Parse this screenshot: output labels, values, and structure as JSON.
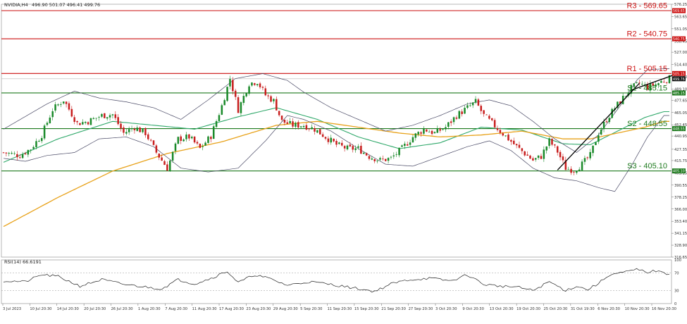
{
  "header": {
    "symbol": "NVIDIA,H4",
    "ohlc": "496.90 501.07 496.41 499.76"
  },
  "rsi_header": "RSI(14) 66.6191",
  "colors": {
    "bull": "#1a8a2a",
    "bear": "#c81e1e",
    "resistance": "#cc1111",
    "support": "#1e7a1e",
    "ma_fast": "#2fa86a",
    "ma_slow": "#e8a21a",
    "bollinger": "#4a4a66",
    "trend": "#000000",
    "rsi": "#222222"
  },
  "chart_data": {
    "type": "candlestick",
    "title": "NVIDIA,H4",
    "ylim": [
      316.65,
      576.25
    ],
    "y_ticks": [
      "576.25",
      "563.65",
      "551.05",
      "538.45",
      "527.00",
      "514.40",
      "501.80",
      "489.10",
      "477.65",
      "465.05",
      "452.45",
      "440.95",
      "427.35",
      "415.75",
      "403.15",
      "390.55",
      "378.25",
      "366.00",
      "353.40",
      "341.15",
      "328.90",
      "316.65"
    ],
    "x_ticks": [
      "3 Jul 2023",
      "10 Jul 20:30",
      "14 Jul 20:30",
      "20 Jul 20:30",
      "26 Jul 20:30",
      "1 Aug 20:30",
      "7 Aug 20:30",
      "11 Aug 20:30",
      "17 Aug 20:30",
      "23 Aug 20:30",
      "29 Aug 20:30",
      "5 Sep 20:30",
      "11 Sep 20:30",
      "15 Sep 20:30",
      "21 Sep 20:30",
      "27 Sep 20:30",
      "3 Oct 20:30",
      "9 Oct 20:30",
      "13 Oct 20:30",
      "19 Oct 20:30",
      "25 Oct 20:30",
      "31 Oct 19:30",
      "6 Nov 20:30",
      "10 Nov 20:30",
      "16 Nov 20:30"
    ],
    "levels": [
      {
        "name": "R3",
        "value": 569.65,
        "label": "R3 - 569.65",
        "tag": "569.65",
        "kind": "resistance"
      },
      {
        "name": "R2",
        "value": 540.75,
        "label": "R2 - 540.75",
        "tag": "540.75",
        "kind": "resistance"
      },
      {
        "name": "R1",
        "value": 505.15,
        "label": "R1 - 505.15",
        "tag": "505.15",
        "kind": "resistance"
      },
      {
        "name": "S1",
        "value": 485.15,
        "label": "S1 - 485.15",
        "tag": "485.15",
        "kind": "support"
      },
      {
        "name": "S2",
        "value": 448.55,
        "label": "S2 - 448.55",
        "tag": "448.55",
        "kind": "support"
      },
      {
        "name": "S3",
        "value": 405.1,
        "label": "S3 - 405.10",
        "tag": "405.10",
        "kind": "support"
      }
    ],
    "last_price_tag": "499.76",
    "close_anchors": [
      [
        0,
        424
      ],
      [
        6,
        421
      ],
      [
        10,
        428
      ],
      [
        14,
        442
      ],
      [
        18,
        468
      ],
      [
        22,
        478
      ],
      [
        27,
        454
      ],
      [
        31,
        456
      ],
      [
        36,
        462
      ],
      [
        40,
        463
      ],
      [
        44,
        444
      ],
      [
        48,
        450
      ],
      [
        52,
        444
      ],
      [
        56,
        424
      ],
      [
        60,
        408
      ],
      [
        64,
        438
      ],
      [
        68,
        440
      ],
      [
        72,
        428
      ],
      [
        76,
        441
      ],
      [
        80,
        472
      ],
      [
        83,
        500
      ],
      [
        86,
        468
      ],
      [
        90,
        495
      ],
      [
        93,
        497
      ],
      [
        96,
        483
      ],
      [
        99,
        477
      ],
      [
        102,
        456
      ],
      [
        106,
        452
      ],
      [
        110,
        452
      ],
      [
        114,
        448
      ],
      [
        118,
        440
      ],
      [
        122,
        432
      ],
      [
        126,
        428
      ],
      [
        130,
        428
      ],
      [
        134,
        420
      ],
      [
        138,
        416
      ],
      [
        142,
        418
      ],
      [
        146,
        428
      ],
      [
        150,
        440
      ],
      [
        154,
        448
      ],
      [
        158,
        444
      ],
      [
        162,
        450
      ],
      [
        166,
        462
      ],
      [
        170,
        470
      ],
      [
        173,
        476
      ],
      [
        176,
        462
      ],
      [
        179,
        454
      ],
      [
        182,
        446
      ],
      [
        185,
        438
      ],
      [
        188,
        430
      ],
      [
        191,
        423
      ],
      [
        194,
        416
      ],
      [
        197,
        420
      ],
      [
        200,
        436
      ],
      [
        203,
        425
      ],
      [
        206,
        408
      ],
      [
        209,
        406
      ],
      [
        212,
        412
      ],
      [
        215,
        421
      ],
      [
        218,
        444
      ],
      [
        221,
        458
      ],
      [
        224,
        470
      ],
      [
        227,
        480
      ],
      [
        230,
        490
      ],
      [
        233,
        495
      ],
      [
        236,
        491
      ],
      [
        239,
        494
      ],
      [
        242,
        498
      ],
      [
        244,
        500
      ]
    ],
    "series": [
      {
        "name": "MA fast",
        "values": [
          [
            0,
            414
          ],
          [
            20,
            438
          ],
          [
            40,
            456
          ],
          [
            55,
            452
          ],
          [
            70,
            448
          ],
          [
            85,
            460
          ],
          [
            100,
            470
          ],
          [
            115,
            458
          ],
          [
            130,
            440
          ],
          [
            145,
            428
          ],
          [
            160,
            434
          ],
          [
            175,
            450
          ],
          [
            190,
            447
          ],
          [
            205,
            433
          ],
          [
            215,
            432
          ],
          [
            225,
            446
          ],
          [
            235,
            460
          ],
          [
            242,
            466
          ]
        ]
      },
      {
        "name": "MA slow",
        "values": [
          [
            0,
            348
          ],
          [
            20,
            378
          ],
          [
            40,
            405
          ],
          [
            60,
            423
          ],
          [
            80,
            435
          ],
          [
            100,
            452
          ],
          [
            115,
            456
          ],
          [
            130,
            450
          ],
          [
            145,
            444
          ],
          [
            160,
            440
          ],
          [
            175,
            442
          ],
          [
            190,
            446
          ],
          [
            205,
            438
          ],
          [
            215,
            438
          ],
          [
            225,
            444
          ],
          [
            235,
            450
          ],
          [
            242,
            456
          ]
        ]
      },
      {
        "name": "Bollinger upper",
        "values": [
          [
            0,
            448
          ],
          [
            16,
            474
          ],
          [
            26,
            487
          ],
          [
            35,
            480
          ],
          [
            45,
            476
          ],
          [
            55,
            470
          ],
          [
            65,
            458
          ],
          [
            75,
            478
          ],
          [
            85,
            500
          ],
          [
            95,
            505
          ],
          [
            104,
            498
          ],
          [
            110,
            486
          ],
          [
            120,
            470
          ],
          [
            130,
            458
          ],
          [
            140,
            446
          ],
          [
            150,
            452
          ],
          [
            160,
            462
          ],
          [
            170,
            474
          ],
          [
            178,
            478
          ],
          [
            186,
            472
          ],
          [
            194,
            456
          ],
          [
            202,
            438
          ],
          [
            210,
            424
          ],
          [
            218,
            442
          ],
          [
            226,
            472
          ],
          [
            232,
            498
          ],
          [
            236,
            509
          ],
          [
            242,
            510
          ]
        ]
      },
      {
        "name": "Bollinger lower",
        "values": [
          [
            0,
            418
          ],
          [
            8,
            415
          ],
          [
            16,
            421
          ],
          [
            26,
            424
          ],
          [
            35,
            438
          ],
          [
            45,
            440
          ],
          [
            55,
            430
          ],
          [
            65,
            408
          ],
          [
            75,
            404
          ],
          [
            86,
            408
          ],
          [
            96,
            436
          ],
          [
            104,
            462
          ],
          [
            110,
            458
          ],
          [
            120,
            446
          ],
          [
            130,
            428
          ],
          [
            140,
            412
          ],
          [
            150,
            410
          ],
          [
            160,
            420
          ],
          [
            170,
            430
          ],
          [
            178,
            436
          ],
          [
            186,
            426
          ],
          [
            194,
            408
          ],
          [
            202,
            398
          ],
          [
            210,
            395
          ],
          [
            218,
            388
          ],
          [
            224,
            384
          ],
          [
            230,
            410
          ],
          [
            236,
            440
          ],
          [
            242,
            462
          ]
        ]
      }
    ],
    "rsi": {
      "label": "RSI(14) 66.6191",
      "ylim": [
        0,
        100
      ],
      "levels": [
        70,
        30
      ],
      "y_ticks": [
        "100",
        "70",
        "30",
        "0"
      ],
      "anchors": [
        [
          0,
          52
        ],
        [
          8,
          50
        ],
        [
          14,
          66
        ],
        [
          20,
          62
        ],
        [
          28,
          40
        ],
        [
          36,
          55
        ],
        [
          44,
          44
        ],
        [
          52,
          38
        ],
        [
          58,
          34
        ],
        [
          64,
          55
        ],
        [
          70,
          45
        ],
        [
          76,
          58
        ],
        [
          82,
          74
        ],
        [
          86,
          48
        ],
        [
          92,
          66
        ],
        [
          98,
          56
        ],
        [
          104,
          42
        ],
        [
          112,
          50
        ],
        [
          120,
          44
        ],
        [
          128,
          36
        ],
        [
          136,
          28
        ],
        [
          142,
          45
        ],
        [
          148,
          54
        ],
        [
          156,
          58
        ],
        [
          164,
          52
        ],
        [
          170,
          66
        ],
        [
          176,
          44
        ],
        [
          182,
          40
        ],
        [
          188,
          38
        ],
        [
          194,
          30
        ],
        [
          200,
          50
        ],
        [
          206,
          30
        ],
        [
          210,
          40
        ],
        [
          214,
          32
        ],
        [
          218,
          46
        ],
        [
          222,
          66
        ],
        [
          228,
          72
        ],
        [
          232,
          78
        ],
        [
          236,
          72
        ],
        [
          240,
          76
        ],
        [
          242,
          68
        ]
      ]
    }
  }
}
